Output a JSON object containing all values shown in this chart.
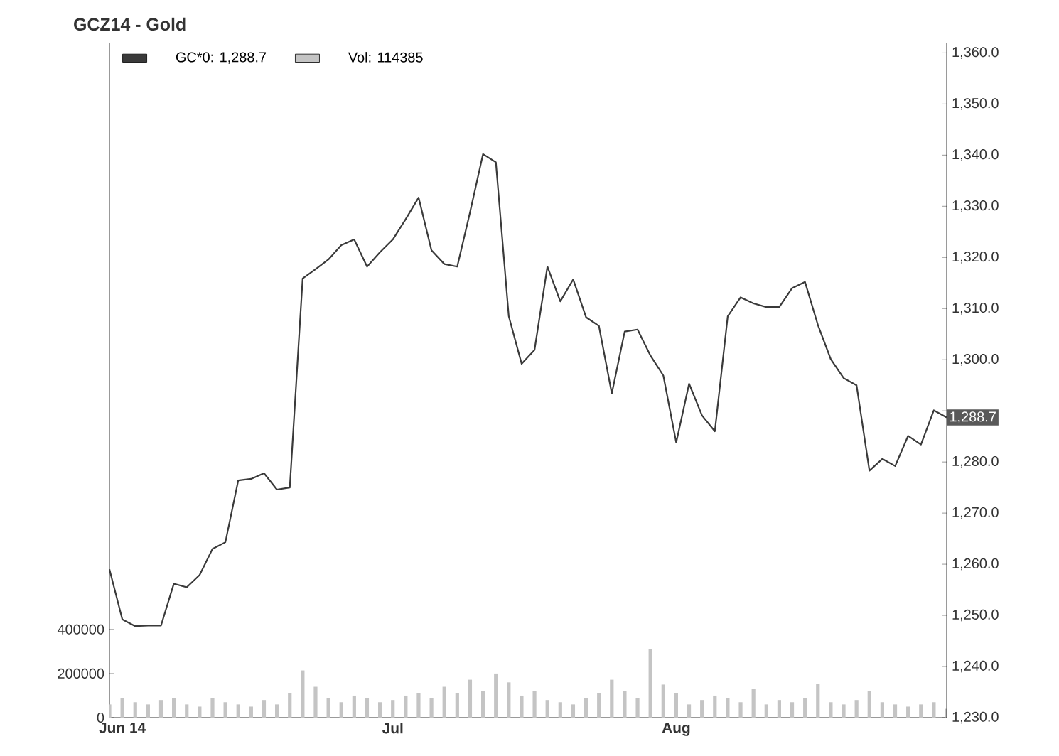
{
  "chart_data": {
    "type": "line",
    "title": "GCZ14 - Gold",
    "categories": [
      null,
      "Jun 14",
      null,
      null,
      null,
      null,
      null,
      null,
      null,
      null,
      null,
      null,
      null,
      null,
      null,
      null,
      null,
      null,
      null,
      null,
      null,
      null,
      "Jul",
      null,
      null,
      null,
      null,
      null,
      null,
      null,
      null,
      null,
      null,
      null,
      null,
      null,
      null,
      null,
      null,
      null,
      null,
      null,
      null,
      null,
      "Aug",
      null,
      null,
      null,
      null,
      null,
      null,
      null,
      null,
      null,
      null,
      null,
      null,
      null,
      null,
      null,
      null,
      null,
      null,
      null,
      null,
      null
    ],
    "series": [
      {
        "name": "GC*0: 1,288.7",
        "axis": "y2",
        "color": "#3a3a3a",
        "values": [
          1259.0,
          1249.2,
          1247.9,
          1248.0,
          1248.0,
          1256.2,
          1255.5,
          1257.9,
          1263.0,
          1264.3,
          1276.4,
          1276.7,
          1277.8,
          1274.6,
          1275.0,
          1315.9,
          1317.7,
          1319.6,
          1322.4,
          1323.5,
          1318.2,
          1321.0,
          1323.5,
          1327.5,
          1331.7,
          1321.4,
          1318.7,
          1318.2,
          1328.9,
          1340.2,
          1338.6,
          1308.5,
          1299.2,
          1301.9,
          1318.2,
          1311.4,
          1315.7,
          1308.3,
          1306.6,
          1293.4,
          1305.5,
          1305.9,
          1300.8,
          1296.9,
          1283.8,
          1295.3,
          1289.1,
          1286.0,
          1308.5,
          1312.2,
          1311.0,
          1310.3,
          1310.3,
          1314.0,
          1315.2,
          1306.8,
          1300.1,
          1296.4,
          1295.0,
          1278.3,
          1280.6,
          1279.2,
          1285.1,
          1283.4,
          1290.1,
          1288.7
        ]
      },
      {
        "name": "Vol: 114385",
        "type": "bar",
        "color": "#c4c4c4",
        "values": [
          60000,
          90000,
          70000,
          60000,
          80000,
          90000,
          60000,
          50000,
          90000,
          70000,
          60000,
          50000,
          80000,
          60000,
          110000,
          214000,
          140000,
          90000,
          70000,
          100000,
          90000,
          70000,
          80000,
          100000,
          110000,
          90000,
          140000,
          110000,
          172000,
          120000,
          200000,
          160000,
          100000,
          120000,
          80000,
          70000,
          60000,
          90000,
          110000,
          172000,
          120000,
          90000,
          311000,
          150000,
          110000,
          60000,
          80000,
          100000,
          90000,
          70000,
          130000,
          60000,
          80000,
          70000,
          90000,
          153000,
          70000,
          60000,
          80000,
          120000,
          70000,
          60000,
          50000,
          60000,
          70000,
          40000
        ]
      }
    ],
    "ylim": [
      0,
      3060000
    ],
    "yticks": [
      0,
      200000,
      400000
    ],
    "y2lim": [
      1230,
      1362
    ],
    "y2ticks": [
      {
        "value": 1230,
        "label": "1,230.0"
      },
      {
        "value": 1240,
        "label": "1,240.0"
      },
      {
        "value": 1250,
        "label": "1,250.0"
      },
      {
        "value": 1260,
        "label": "1,260.0"
      },
      {
        "value": 1270,
        "label": "1,270.0"
      },
      {
        "value": 1280,
        "label": "1,280.0"
      },
      {
        "value": 1290,
        "label": null
      },
      {
        "value": 1300,
        "label": "1,300.0"
      },
      {
        "value": 1310,
        "label": "1,310.0"
      },
      {
        "value": 1320,
        "label": "1,320.0"
      },
      {
        "value": 1330,
        "label": "1,330.0"
      },
      {
        "value": 1340,
        "label": "1,340.0"
      },
      {
        "value": 1350,
        "label": "1,350.0"
      },
      {
        "value": 1360,
        "label": "1,360.0"
      }
    ],
    "annotations": [
      "1,288.7"
    ],
    "legend": "top left"
  }
}
